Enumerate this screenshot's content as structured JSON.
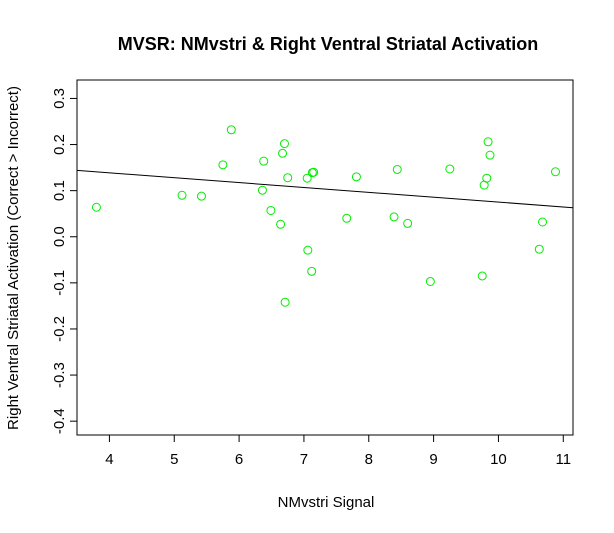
{
  "chart_data": {
    "type": "scatter",
    "title": "MVSR: NMvstri & Right Ventral Striatal Activation",
    "xlabel": "NMvstri Signal",
    "ylabel": "Right Ventral Striatal Activation (Correct > Incorrect)",
    "xlim": [
      3.5,
      11.15
    ],
    "ylim": [
      -0.43,
      0.34
    ],
    "x_ticks": [
      4,
      5,
      6,
      7,
      8,
      9,
      10,
      11
    ],
    "x_tick_labels": [
      "4",
      "5",
      "6",
      "7",
      "8",
      "9",
      "10",
      "11"
    ],
    "y_ticks": [
      -0.4,
      -0.3,
      -0.2,
      -0.1,
      0.0,
      0.1,
      0.2,
      0.3
    ],
    "y_tick_labels": [
      "-0.4",
      "-0.3",
      "-0.2",
      "-0.1",
      "0.0",
      "0.1",
      "0.2",
      "0.3"
    ],
    "grid": false,
    "point_color": "#00ee00",
    "line_color": "#000000",
    "regression_line": {
      "x": [
        3.5,
        11.15
      ],
      "y": [
        0.144,
        0.063
      ]
    },
    "points": [
      {
        "x": 3.8,
        "y": 0.064
      },
      {
        "x": 5.12,
        "y": 0.09
      },
      {
        "x": 5.42,
        "y": 0.088
      },
      {
        "x": 5.75,
        "y": 0.156
      },
      {
        "x": 5.88,
        "y": 0.232
      },
      {
        "x": 6.36,
        "y": 0.101
      },
      {
        "x": 6.38,
        "y": 0.164
      },
      {
        "x": 6.49,
        "y": 0.057
      },
      {
        "x": 6.64,
        "y": 0.027
      },
      {
        "x": 6.67,
        "y": 0.181
      },
      {
        "x": 6.7,
        "y": 0.202
      },
      {
        "x": 6.71,
        "y": -0.142
      },
      {
        "x": 6.75,
        "y": 0.128
      },
      {
        "x": 7.05,
        "y": 0.127
      },
      {
        "x": 7.06,
        "y": -0.029
      },
      {
        "x": 7.12,
        "y": -0.075
      },
      {
        "x": 7.13,
        "y": 0.139
      },
      {
        "x": 7.15,
        "y": 0.14
      },
      {
        "x": 7.66,
        "y": 0.04
      },
      {
        "x": 7.81,
        "y": 0.13
      },
      {
        "x": 8.39,
        "y": 0.043
      },
      {
        "x": 8.44,
        "y": 0.146
      },
      {
        "x": 8.6,
        "y": 0.029
      },
      {
        "x": 8.95,
        "y": -0.097
      },
      {
        "x": 9.25,
        "y": 0.147
      },
      {
        "x": 9.75,
        "y": -0.085
      },
      {
        "x": 9.78,
        "y": 0.112
      },
      {
        "x": 9.82,
        "y": 0.127
      },
      {
        "x": 9.84,
        "y": 0.206
      },
      {
        "x": 9.87,
        "y": 0.177
      },
      {
        "x": 10.63,
        "y": -0.027
      },
      {
        "x": 10.68,
        "y": 0.032
      },
      {
        "x": 10.88,
        "y": 0.141
      }
    ]
  }
}
